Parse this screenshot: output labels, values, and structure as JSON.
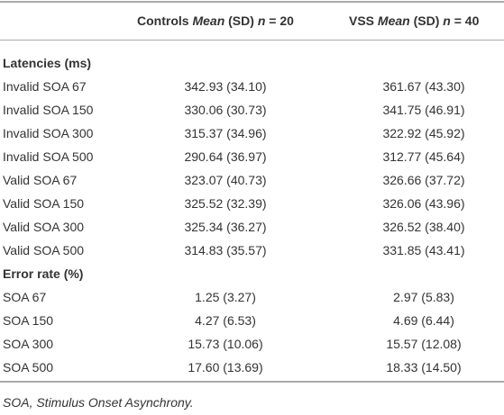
{
  "table": {
    "header": [
      [
        "Controls",
        "Mean",
        "(SD)",
        "n",
        "= 20"
      ],
      [
        "VSS",
        "Mean",
        "(SD)",
        "n",
        "= 40"
      ]
    ],
    "sections": [
      {
        "title": "Latencies (ms)",
        "rows": [
          [
            "Invalid SOA 67",
            "342.93 (34.10)",
            "361.67 (43.30)"
          ],
          [
            "Invalid SOA 150",
            "330.06 (30.73)",
            "341.75 (46.91)"
          ],
          [
            "Invalid SOA 300",
            "315.37 (34.96)",
            "322.92 (45.92)"
          ],
          [
            "Invalid SOA 500",
            "290.64 (36.97)",
            "312.77 (45.64)"
          ],
          [
            "Valid SOA 67",
            "323.07 (40.73)",
            "326.66 (37.72)"
          ],
          [
            "Valid SOA 150",
            "325.52 (32.39)",
            "326.06 (43.96)"
          ],
          [
            "Valid SOA 300",
            "325.34 (36.27)",
            "326.52 (38.40)"
          ],
          [
            "Valid SOA 500",
            "314.83 (35.57)",
            "331.85 (43.41)"
          ]
        ]
      },
      {
        "title": "Error rate (%)",
        "rows": [
          [
            "SOA 67",
            "1.25 (3.27)",
            "2.97 (5.83)"
          ],
          [
            "SOA 150",
            "4.27 (6.53)",
            "4.69 (6.44)"
          ],
          [
            "SOA 300",
            "15.73 (10.06)",
            "15.57 (12.08)"
          ],
          [
            "SOA 500",
            "17.60 (13.69)",
            "18.33 (14.50)"
          ]
        ]
      }
    ]
  },
  "footnote": "SOA, Stimulus Onset Asynchrony."
}
